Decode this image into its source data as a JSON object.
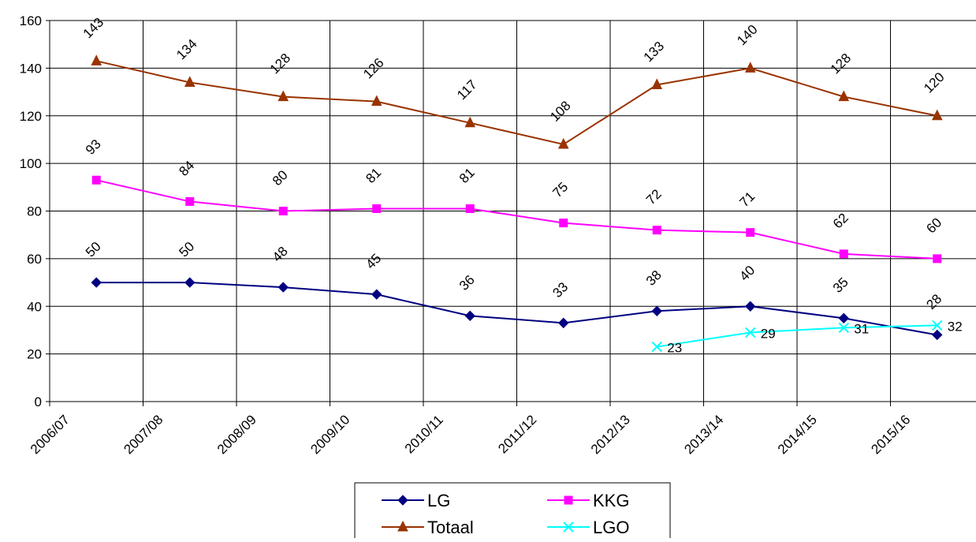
{
  "chart_data": {
    "type": "line",
    "title": "",
    "xlabel": "",
    "ylabel": "",
    "categories": [
      "2006/07",
      "2007/08",
      "2008/09",
      "2009/10",
      "2010/11",
      "2011/12",
      "2012/13",
      "2013/14",
      "2014/15",
      "2015/16"
    ],
    "ylim": [
      0,
      160
    ],
    "yticks": [
      0,
      20,
      40,
      60,
      80,
      100,
      120,
      140,
      160
    ],
    "grid": true,
    "legend_position": "bottom-center",
    "series": [
      {
        "name": "LG",
        "color": "#000080",
        "marker": "diamond",
        "values": [
          50,
          50,
          48,
          45,
          36,
          33,
          38,
          40,
          35,
          28
        ]
      },
      {
        "name": "KKG",
        "color": "#ff00ff",
        "marker": "square",
        "values": [
          93,
          84,
          80,
          81,
          81,
          75,
          72,
          71,
          62,
          60
        ]
      },
      {
        "name": "Totaal",
        "color": "#993300",
        "marker": "triangle",
        "values": [
          143,
          134,
          128,
          126,
          117,
          108,
          133,
          140,
          128,
          120
        ]
      },
      {
        "name": "LGO",
        "color": "#00ffff",
        "marker": "x",
        "values": [
          null,
          null,
          null,
          null,
          null,
          null,
          23,
          29,
          31,
          32
        ]
      }
    ]
  }
}
